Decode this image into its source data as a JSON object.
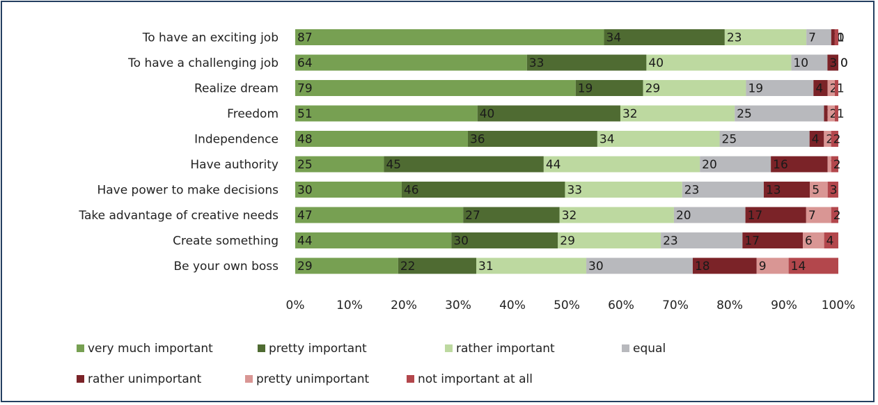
{
  "chart_data": {
    "type": "bar",
    "orientation": "horizontal",
    "stacked": "percent",
    "title": "",
    "xlabel": "",
    "ylabel": "",
    "xlim": [
      0,
      100
    ],
    "x_ticks": [
      "0%",
      "10%",
      "20%",
      "30%",
      "40%",
      "50%",
      "60%",
      "70%",
      "80%",
      "90%",
      "100%"
    ],
    "grid": false,
    "legend_position": "bottom",
    "categories": [
      "To have an exciting job",
      "To have a challenging job",
      "Realize dream",
      "Freedom",
      "Independence",
      "Have authority",
      "Have power to make decisions",
      "Take advantage of creative needs",
      "Create something",
      "Be your own boss"
    ],
    "series": [
      {
        "name": "very much important",
        "color": "#77a052",
        "values": [
          87,
          64,
          79,
          51,
          48,
          25,
          30,
          47,
          44,
          29
        ]
      },
      {
        "name": "pretty important",
        "color": "#4f6b32",
        "values": [
          34,
          33,
          19,
          40,
          36,
          45,
          46,
          27,
          30,
          22
        ]
      },
      {
        "name": "rather important",
        "color": "#bdd9a0",
        "values": [
          23,
          40,
          29,
          32,
          34,
          44,
          33,
          32,
          29,
          31
        ]
      },
      {
        "name": "equal",
        "color": "#b8b9bd",
        "values": [
          7,
          10,
          19,
          25,
          25,
          20,
          23,
          20,
          23,
          30
        ]
      },
      {
        "name": "rather unimportant",
        "color": "#7b2328",
        "values": [
          1,
          3,
          4,
          1,
          4,
          16,
          13,
          17,
          17,
          18
        ]
      },
      {
        "name": "pretty unimportant",
        "color": "#d99694",
        "values": [
          0,
          0,
          2,
          2,
          2,
          1,
          5,
          7,
          6,
          9
        ]
      },
      {
        "name": "not important at all",
        "color": "#b3474c",
        "values": [
          1,
          0,
          1,
          1,
          2,
          2,
          3,
          2,
          4,
          14
        ]
      }
    ]
  }
}
